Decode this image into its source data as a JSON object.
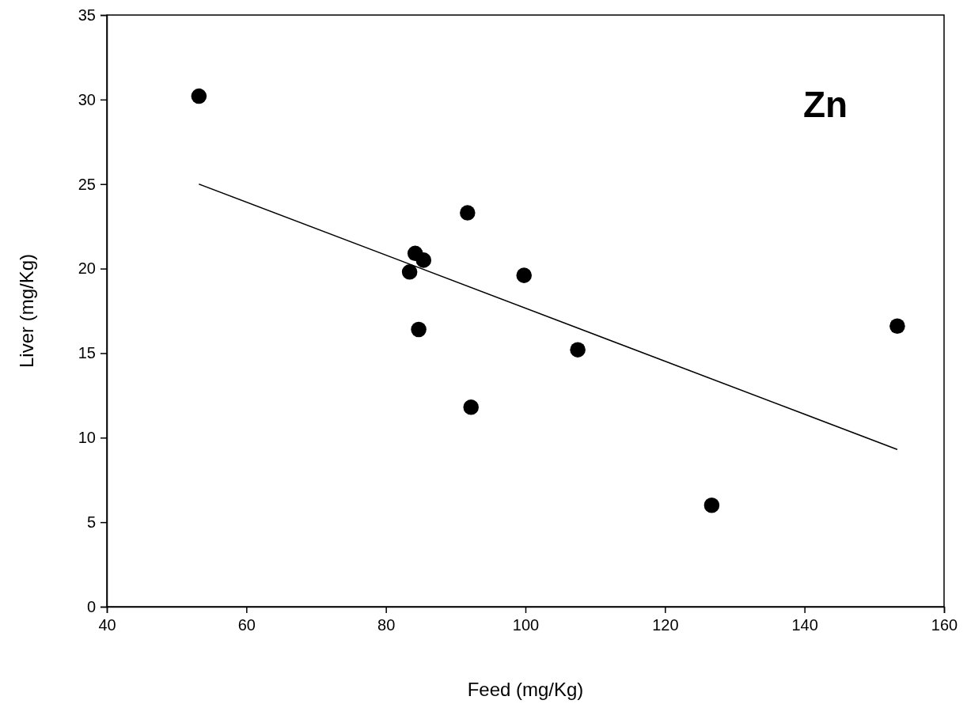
{
  "chart_data": {
    "type": "scatter",
    "xlabel": "Feed (mg/Kg)",
    "ylabel": "Liver (mg/Kg)",
    "annotations": [
      "Zn"
    ],
    "xlim": [
      40,
      160
    ],
    "xticks": [
      40,
      60,
      80,
      100,
      120,
      140,
      160
    ],
    "ylim": [
      0,
      35
    ],
    "yticks": [
      0,
      5,
      10,
      15,
      20,
      25,
      30,
      35
    ],
    "grid": false,
    "marker": "circle",
    "series": [
      {
        "color": "#000000",
        "x": [
          53.2,
          91.7,
          84.2,
          85.4,
          83.4,
          99.8,
          84.7,
          92.2,
          107.5,
          126.7,
          153.3
        ],
        "values": [
          30.2,
          23.3,
          20.9,
          20.5,
          19.8,
          19.6,
          16.4,
          11.8,
          15.2,
          6.0,
          16.6
        ]
      },
      {
        "type": "line",
        "color": "#000000",
        "marker": "none",
        "line_style": "solid",
        "x": [
          53.2,
          153.3
        ],
        "values": [
          25.0,
          9.3
        ]
      }
    ]
  }
}
